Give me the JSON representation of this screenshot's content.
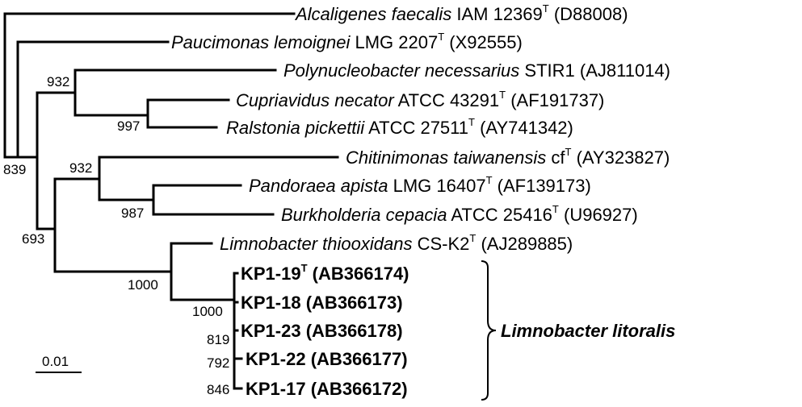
{
  "taxa": [
    {
      "id": "alcaligenes",
      "name": "Alcaligenes faecalis",
      "strain": "IAM 12369",
      "type_strain": true,
      "accession": "(D88008)"
    },
    {
      "id": "paucimonas",
      "name": "Paucimonas lemoignei",
      "strain": "LMG 2207",
      "type_strain": true,
      "accession": "(X92555)"
    },
    {
      "id": "polynucleobacter",
      "name": "Polynucleobacter necessarius",
      "strain": "STIR1",
      "type_strain": false,
      "accession": "(AJ811014)"
    },
    {
      "id": "cupriavidus",
      "name": "Cupriavidus necator",
      "strain": "ATCC 43291",
      "type_strain": true,
      "accession": "(AF191737)"
    },
    {
      "id": "ralstonia",
      "name": "Ralstonia pickettii",
      "strain": "ATCC 27511",
      "type_strain": true,
      "accession": "(AY741342)"
    },
    {
      "id": "chitinimonas",
      "name": "Chitinimonas taiwanensis",
      "strain": "cf",
      "type_strain": true,
      "accession": "(AY323827)"
    },
    {
      "id": "pandoraea",
      "name": "Pandoraea apista",
      "strain": "LMG 16407",
      "type_strain": true,
      "accession": "(AF139173)"
    },
    {
      "id": "burkholderia",
      "name": "Burkholderia cepacia",
      "strain": "ATCC 25416",
      "type_strain": true,
      "accession": "(U96927)"
    },
    {
      "id": "limnobacter-thio",
      "name": "Limnobacter thiooxidans",
      "strain": "CS-K2",
      "type_strain": true,
      "accession": "(AJ289885)"
    }
  ],
  "isolates": [
    {
      "id": "kp1-19",
      "strain": "KP1-19",
      "type_strain": true,
      "accession": "(AB366174)"
    },
    {
      "id": "kp1-18",
      "strain": "KP1-18",
      "type_strain": false,
      "accession": "(AB366173)"
    },
    {
      "id": "kp1-23",
      "strain": "KP1-23",
      "type_strain": false,
      "accession": "(AB366178)"
    },
    {
      "id": "kp1-22",
      "strain": "KP1-22",
      "type_strain": false,
      "accession": "(AB366177)"
    },
    {
      "id": "kp1-17",
      "strain": "KP1-17",
      "type_strain": false,
      "accession": "(AB366172)"
    }
  ],
  "type_strain_mark": "T",
  "bootstrap": {
    "n932_top": "932",
    "n997": "997",
    "n839": "839",
    "n932_mid": "932",
    "n987": "987",
    "n693": "693",
    "n1000_outer": "1000",
    "n1000_inner": "1000",
    "n819": "819",
    "n792": "792",
    "n846": "846"
  },
  "group_label": "Limnobacter litoralis",
  "scale_bar": {
    "label": "0.01",
    "value": 0.01
  }
}
